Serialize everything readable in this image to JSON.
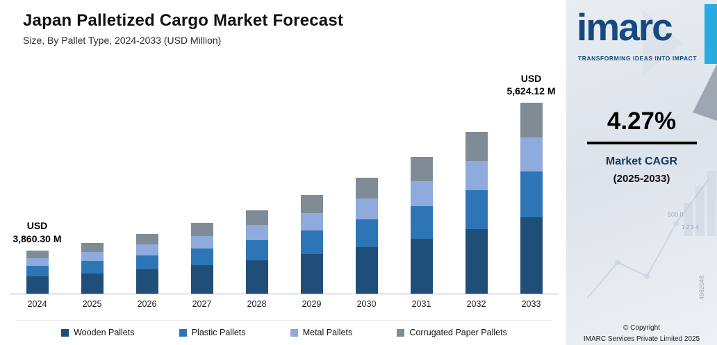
{
  "header": {
    "title": "Japan Palletized Cargo Market Forecast",
    "subtitle": "Size, By Pallet Type, 2024-2033 (USD Million)"
  },
  "chart_data": {
    "type": "bar",
    "stacked": true,
    "unit": "USD Million",
    "grid": false,
    "legend_position": "bottom",
    "categories": [
      "2024",
      "2025",
      "2026",
      "2027",
      "2028",
      "2029",
      "2030",
      "2031",
      "2032",
      "2033"
    ],
    "series": [
      {
        "name": "Wooden Pallets",
        "color": "#1f4e79",
        "values": [
          1544.13,
          1610.05,
          1678.81,
          1750.49,
          1825.23,
          1903.17,
          1984.43,
          2069.17,
          2157.52,
          2249.65
        ]
      },
      {
        "name": "Plastic Pallets",
        "color": "#2e75b6",
        "values": [
          926.47,
          966.03,
          1007.28,
          1050.29,
          1095.14,
          1141.9,
          1190.66,
          1241.5,
          1294.51,
          1349.79
        ]
      },
      {
        "name": "Metal Pallets",
        "color": "#8faadc",
        "values": [
          694.85,
          724.53,
          755.46,
          787.72,
          821.36,
          856.43,
          893.0,
          931.13,
          970.89,
          1012.34
        ]
      },
      {
        "name": "Corrugated Paper Pallets",
        "color": "#7f8b95",
        "values": [
          694.85,
          724.53,
          755.46,
          787.72,
          821.36,
          856.43,
          893.0,
          931.13,
          970.89,
          1012.34
        ]
      }
    ],
    "totals": [
      3860.3,
      4025.14,
      4197.01,
      4376.22,
      4563.09,
      4757.93,
      4961.09,
      5172.93,
      5393.81,
      5624.12
    ],
    "annotations": [
      {
        "category": "2024",
        "line1": "USD",
        "line2": "3,860.30 M"
      },
      {
        "category": "2033",
        "line1": "USD",
        "line2": "5,624.12 M"
      }
    ]
  },
  "sidebar": {
    "logo_text": "imarc",
    "tagline": "TRANSFORMING IDEAS INTO IMPACT",
    "cagr_value": "4.27%",
    "cagr_label_line1": "Market CAGR",
    "cagr_label_line2": "(2025-2033)",
    "copyright_line1": "© Copyright",
    "copyright_line2": "IMARC Services Private Limited 2025",
    "accent_color": "#29abe2",
    "brand_color": "#154a7e",
    "decor_numbers": [
      "4982048",
      "500.0",
      "1 2 3 4"
    ]
  }
}
